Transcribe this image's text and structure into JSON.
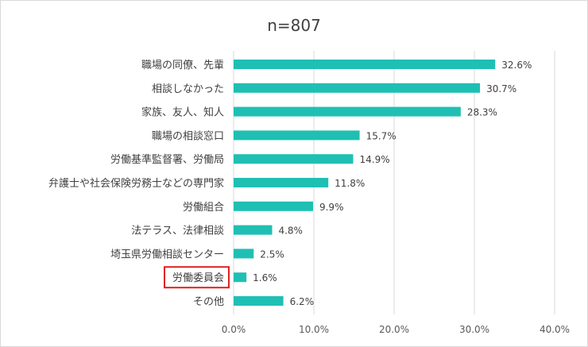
{
  "chart_data": {
    "type": "bar",
    "orientation": "horizontal",
    "title": "n=807",
    "categories": [
      "職場の同僚、先輩",
      "相談しなかった",
      "家族、友人、知人",
      "職場の相談窓口",
      "労働基準監督署、労働局",
      "弁護士や社会保険労務士などの専門家",
      "労働組合",
      "法テラス、法律相談",
      "埼玉県労働相談センター",
      "労働委員会",
      "その他"
    ],
    "values": [
      32.6,
      30.7,
      28.3,
      15.7,
      14.9,
      11.8,
      9.9,
      4.8,
      2.5,
      1.6,
      6.2
    ],
    "value_labels": [
      "32.6%",
      "30.7%",
      "28.3%",
      "15.7%",
      "14.9%",
      "11.8%",
      "9.9%",
      "4.8%",
      "2.5%",
      "1.6%",
      "6.2%"
    ],
    "x_ticks": [
      "0.0%",
      "10.0%",
      "20.0%",
      "30.0%",
      "40.0%"
    ],
    "xlim": [
      0,
      40
    ],
    "grid": true,
    "highlighted_category": "労働委員会",
    "colors": {
      "bar": "#1fbfb4",
      "highlight_box": "#e02020",
      "grid": "#d9d9d9",
      "text": "#404040"
    }
  }
}
